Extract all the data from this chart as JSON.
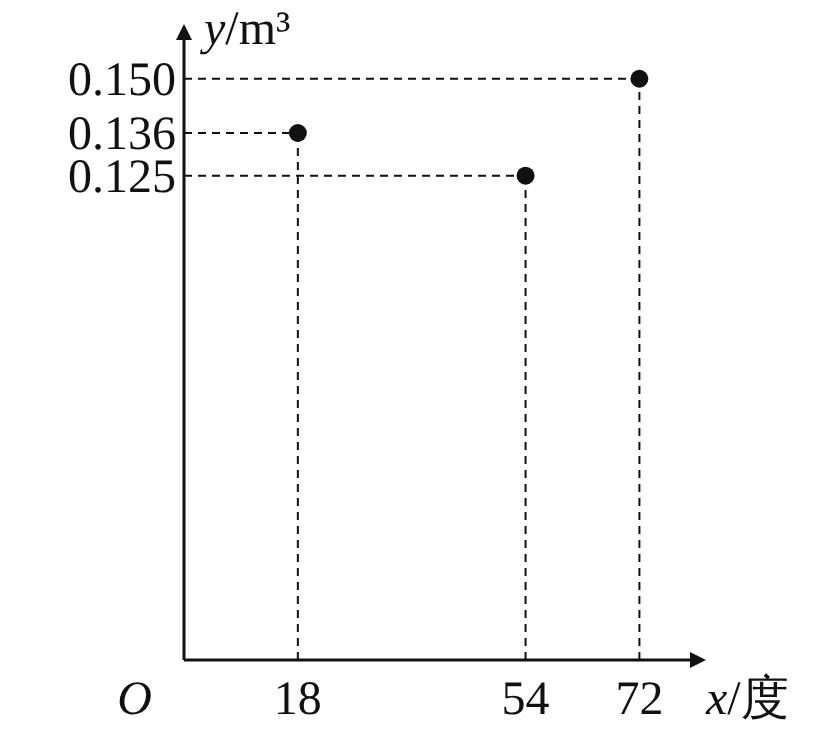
{
  "chart_data": {
    "type": "scatter",
    "xlabel": "x/度",
    "ylabel": "y/m³",
    "x": [
      18,
      54,
      72
    ],
    "series": [
      {
        "color": "#111111",
        "values": [
          0.136,
          0.125,
          0.15
        ]
      }
    ],
    "xlim": [
      0,
      80
    ],
    "ylim": [
      0,
      0.16
    ],
    "xticks": [
      18,
      54,
      72
    ],
    "yticks": [
      0.125,
      0.136,
      {
        "value": 0.15,
        "label": "0.150"
      }
    ],
    "ref_lines": [
      {
        "axis": "x",
        "value": 18,
        "color": "#111111",
        "line_style": "dashed"
      },
      {
        "axis": "x",
        "value": 54,
        "color": "#111111",
        "line_style": "dashed"
      },
      {
        "axis": "x",
        "value": 72,
        "color": "#111111",
        "line_style": "dashed"
      },
      {
        "axis": "y",
        "value": 0.136,
        "color": "#111111",
        "line_style": "dashed"
      },
      {
        "axis": "y",
        "value": 0.125,
        "color": "#111111",
        "line_style": "dashed"
      },
      {
        "axis": "y",
        "value": 0.15,
        "color": "#111111",
        "line_style": "dashed"
      }
    ],
    "annotations": [
      "O"
    ],
    "marker": "circle"
  }
}
